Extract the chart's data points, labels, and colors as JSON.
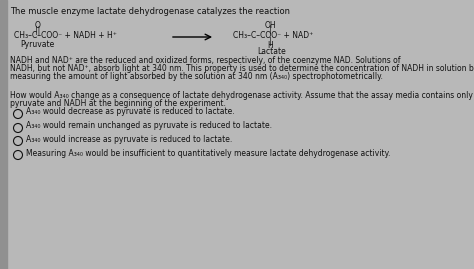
{
  "bg_color": "#b8b8b8",
  "text_color": "#111111",
  "title": "The muscle enzyme lactate dehydrogenase catalyzes the reaction",
  "paragraph1_line1": "NADH and NAD⁺ are the reduced and oxidized forms, respectively, of the coenzyme NAD. Solutions of",
  "paragraph1_line2": "NADH, but not NAD⁺, absorb light at 340 nm. This property is used to determine the concentration of NADH in solution by",
  "paragraph1_line3": "measuring the amount of light absorbed by the solution at 340 nm (A₃₄₀) spectrophotometrically.",
  "question_line1": "How would A₃₄₀ change as a consequence of lactate dehydrogenase activity. Assume that the assay media contains only",
  "question_line2": "pyruvate and NADH at the beginning of the experiment.",
  "option1": "A₃₄₀ would decrease as pyruvate is reduced to lactate.",
  "option2": "A₃₄₀ would remain unchanged as pyruvate is reduced to lactate.",
  "option3": "A₃₄₀ would increase as pyruvate is reduced to lactate.",
  "option4": "Measuring A₃₄₀ would be insufficient to quantitatively measure lactate dehydrogenase activity.",
  "left_bar_color": "#888888",
  "figsize": [
    4.74,
    2.69
  ],
  "dpi": 100
}
